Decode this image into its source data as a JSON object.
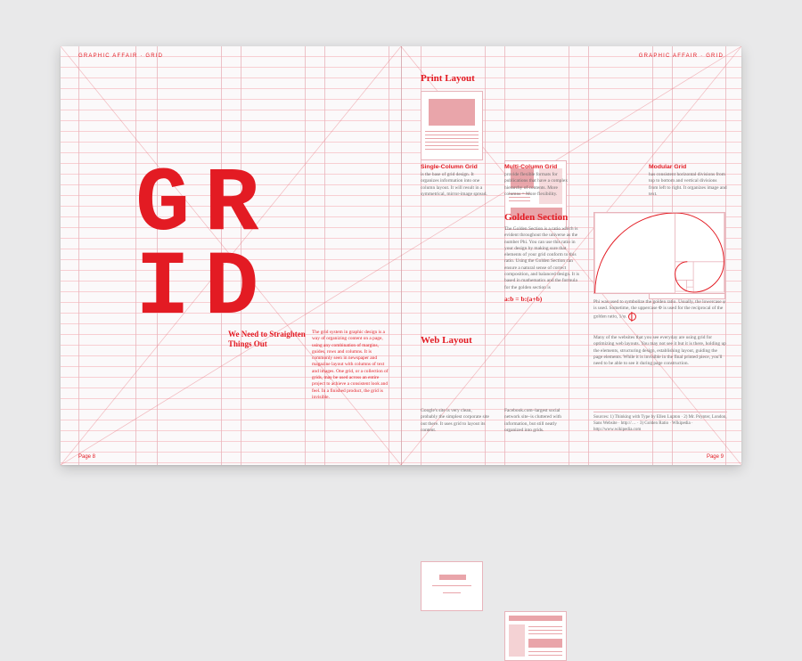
{
  "page": {
    "header": "GRAPHIC AFFAIR · GRID",
    "footer_l": "Page 8",
    "footer_r": "Page 9"
  },
  "hero": {
    "line1a": "G",
    "line1b": "R",
    "line2a": "I",
    "line2b": "D",
    "tagline": "We Need to Straighten Things Out",
    "intro": "The grid system in graphic design is a way of organizing content on a page, using any combination of margins, guides, rows and columns. It is commonly seen in newspaper and magazine layout with columns of text and images. One grid, or a collection of grids, may be used across an entire project to achieve a consistent look and feel. In a finished product, the grid is invisible."
  },
  "print": {
    "heading": "Print Layout",
    "items": [
      {
        "title": "Single-Column Grid",
        "body": "is the base of grid design. It organizes information into one column layout. It will result in a symmetrical, mirror-image spread."
      },
      {
        "title": "Multi-Column Grid",
        "body": "provide flexible formats for publications that have a complex hierarchy of contents. More columns = More flexibility."
      },
      {
        "title": "Modular Grid",
        "body": "has consistent horizontal divisions from top to bottom and vertical divisions from left to right. It organizes image and text."
      }
    ]
  },
  "golden": {
    "heading": "Golden Section",
    "body": "The Golden Section is a ratio which is evident throughout the universe as the number Phi. You can use this ratio in your design by making sure that elements of your grid conform to this ratio. Using the Golden Section can ensure a natural sense of correct composition, and balanced design. It is based in mathematics and the formula for the golden section is",
    "formula": "a:b = b:(a+b)",
    "caption": "Phi was used to symbolize the golden ratio. Usually, the lowercase φ is used. Sometime, the uppercase Φ is used for the reciprocal of the golden ratio, 1/φ."
  },
  "web": {
    "heading": "Web Layout",
    "body": "Many of the websites that you see everyday are using grid for optimizing web layouts. You may not see it but it is there, holding up the elements, structuring design, establishing layout, guiding the page elements. While it is invisible in the final printed piece, you'll need to be able to see it during page construction.",
    "items": [
      {
        "body": "Google's site is very clean, probably the simplest corporate site out there. It uses grid to layout its content."
      },
      {
        "body": "Facebook.com–largest social network site–is cluttered with information, but still neatly organized into grids."
      }
    ],
    "sources": "Sources: 1) Thinking with Type by Ellen Lupton · 2) Mr. Poynter, London, Sans Website · http://… · 3) Golden Ratio · Wikipedia · http://www.wikipedia.com"
  },
  "gridCols": [
    20,
    84,
    108,
    180,
    202,
    274,
    296,
    368,
    382,
    404,
    476,
    498,
    570,
    592,
    664,
    686,
    746
  ],
  "colors": {
    "accent": "#e31b23",
    "rule": "#f5aab1",
    "grid": "#e8b4bb",
    "filler": "#e9a5aa",
    "paper": "#fbf9fa",
    "bg": "#e9e9ea"
  }
}
